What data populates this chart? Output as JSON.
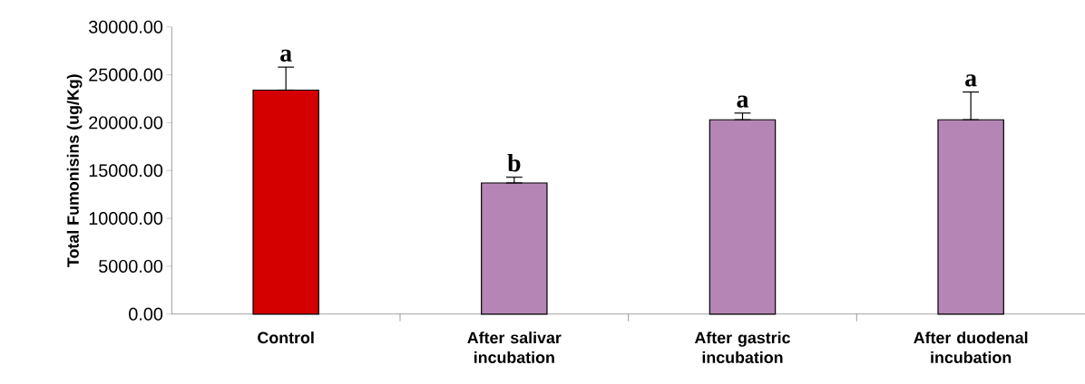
{
  "chart_data": {
    "type": "bar",
    "ylabel": "Total Fumonisins (ug/Kg)",
    "categories": [
      "Control",
      "After salivar incubation",
      "After gastric incubation",
      "After duodenal incubation"
    ],
    "values": [
      23400,
      13700,
      20300,
      20300
    ],
    "errors": [
      [
        23400,
        25800
      ],
      [
        13700,
        14300
      ],
      [
        20300,
        21000
      ],
      [
        20300,
        23200
      ]
    ],
    "colors": [
      "#d40000",
      "#b585b5",
      "#b585b5",
      "#b585b5"
    ],
    "ylim": [
      0,
      30000
    ],
    "yticks": [
      {
        "value": 0,
        "label": "0.00"
      },
      {
        "value": 5000,
        "label": "5000.00"
      },
      {
        "value": 10000,
        "label": "10000.00"
      },
      {
        "value": 15000,
        "label": "15000.00"
      },
      {
        "value": 20000,
        "label": "20000.00"
      },
      {
        "value": 25000,
        "label": "25000.00"
      },
      {
        "value": 30000,
        "label": "30000.00"
      }
    ],
    "annotations": [
      {
        "text": "a",
        "x": "Control",
        "y": 25800
      },
      {
        "text": "b",
        "x": "After salivar incubation",
        "y": 14300
      },
      {
        "text": "a",
        "x": "After gastric incubation",
        "y": 21000
      },
      {
        "text": "a",
        "x": "After duodenal incubation",
        "y": 23200
      }
    ],
    "grid": false
  }
}
